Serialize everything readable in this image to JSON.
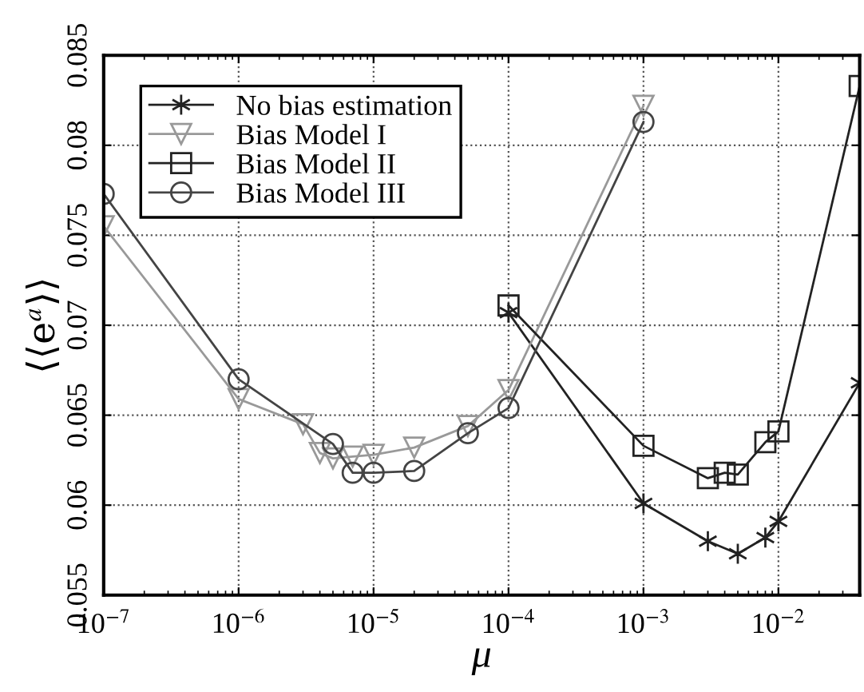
{
  "chart_data": {
    "type": "line",
    "xlabel": "μ",
    "ylabel": "⟨⟨e$^{a}$⟩⟩",
    "log": "x",
    "grid": true,
    "legend": "top left",
    "line_style": "solid",
    "xlim": [
      1e-07,
      0.04
    ],
    "ylim": [
      0.055,
      0.085
    ],
    "xticks": [
      {
        "value": 1e-07,
        "label": "10$^{−7}$"
      },
      {
        "value": 1e-06,
        "label": "10$^{−6}$"
      },
      {
        "value": 1e-05,
        "label": "10$^{−5}$"
      },
      {
        "value": 0.0001,
        "label": "10$^{−4}$"
      },
      {
        "value": 0.001,
        "label": "10$^{−3}$"
      },
      {
        "value": 0.01,
        "label": "10$^{−2}$"
      }
    ],
    "yticks": [
      0.055,
      0.06,
      0.065,
      0.07,
      0.075,
      0.08,
      0.085
    ],
    "series": [
      {
        "name": "No bias estimation",
        "color": "#222222",
        "marker": "cross",
        "x": [
          0.0001,
          0.001,
          0.003,
          0.005,
          0.008,
          0.01,
          0.04
        ],
        "values": [
          0.0707,
          0.0601,
          0.058,
          0.0573,
          0.0582,
          0.0591,
          0.0668
        ]
      },
      {
        "name": "Bias Model I",
        "color": "#999999",
        "marker": "triangle",
        "x": [
          1e-07,
          1e-06,
          3e-06,
          4e-06,
          5e-06,
          7e-06,
          1e-05,
          2e-05,
          5e-05,
          0.0001,
          0.001
        ],
        "values": [
          0.0755,
          0.0659,
          0.0645,
          0.0629,
          0.0626,
          0.0627,
          0.0628,
          0.0632,
          0.0644,
          0.0664,
          0.0822
        ]
      },
      {
        "name": "Bias Model II",
        "color": "#222222",
        "marker": "square",
        "x": [
          0.0001,
          0.001,
          0.003,
          0.004,
          0.005,
          0.008,
          0.01,
          0.04
        ],
        "values": [
          0.0711,
          0.0633,
          0.0615,
          0.0618,
          0.0617,
          0.0635,
          0.0641,
          0.0833
        ]
      },
      {
        "name": "Bias Model III",
        "color": "#444444",
        "marker": "circle",
        "x": [
          1e-07,
          1e-06,
          5e-06,
          7e-06,
          1e-05,
          2e-05,
          5e-05,
          0.0001,
          0.001
        ],
        "values": [
          0.0773,
          0.067,
          0.0634,
          0.0618,
          0.0618,
          0.0619,
          0.064,
          0.0654,
          0.0813
        ]
      }
    ]
  }
}
